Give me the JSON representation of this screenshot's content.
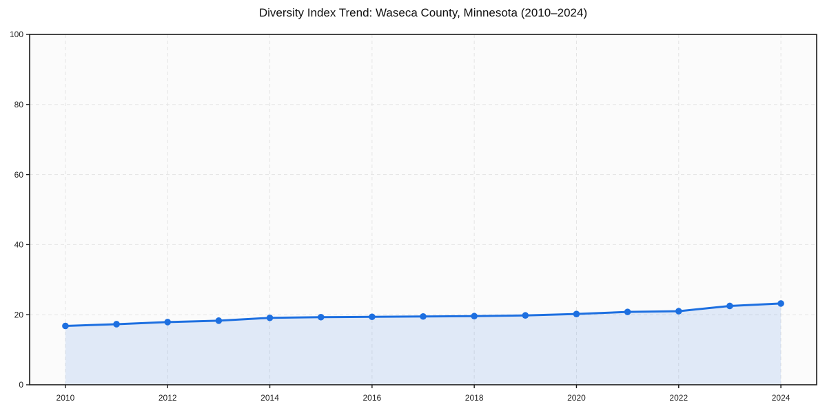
{
  "chart_data": {
    "type": "line",
    "title": "Diversity Index Trend: Waseca County, Minnesota (2010–2024)",
    "xlabel": "",
    "ylabel": "",
    "x": [
      2010,
      2011,
      2012,
      2013,
      2014,
      2015,
      2016,
      2017,
      2018,
      2019,
      2020,
      2021,
      2022,
      2023,
      2024
    ],
    "series": [
      {
        "name": "Diversity Index",
        "values": [
          16.8,
          17.3,
          17.9,
          18.3,
          19.1,
          19.3,
          19.4,
          19.5,
          19.6,
          19.8,
          20.2,
          20.8,
          21.0,
          22.5,
          23.2
        ]
      }
    ],
    "xticks": [
      2010,
      2012,
      2014,
      2016,
      2018,
      2020,
      2022,
      2024
    ],
    "yticks": [
      0,
      20,
      40,
      60,
      80,
      100
    ],
    "xlim": [
      2009.3,
      2024.7
    ],
    "ylim": [
      0,
      100
    ],
    "grid": {
      "visible": true,
      "style": "dashed"
    },
    "legend": {
      "visible": false
    },
    "marker": "circle",
    "area_fill": true,
    "colors": {
      "line": "#1d6fe0",
      "fill_opacity": 0.12,
      "grid": "#e4e4e4",
      "spine": "#1a1a1a",
      "tick_label": "#222222",
      "title": "#111111",
      "plot_background": "#fbfbfb",
      "figure_background": "#ffffff"
    }
  }
}
